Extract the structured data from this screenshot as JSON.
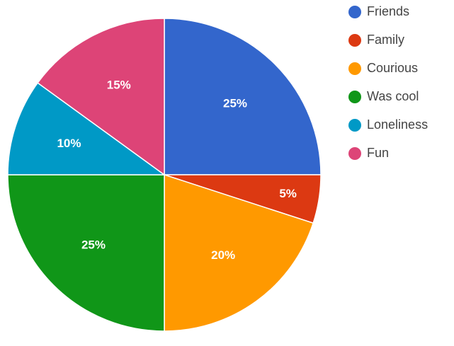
{
  "chart_data": {
    "type": "pie",
    "categories": [
      "Friends",
      "Family",
      "Courious",
      "Was cool",
      "Loneliness",
      "Fun"
    ],
    "values": [
      25,
      5,
      20,
      25,
      10,
      15
    ],
    "value_labels": [
      "25%",
      "5%",
      "20%",
      "25%",
      "10%",
      "15%"
    ],
    "colors": [
      "#3366cc",
      "#dc3912",
      "#ff9900",
      "#109618",
      "#0099c6",
      "#dd4477"
    ],
    "legend": "right"
  }
}
